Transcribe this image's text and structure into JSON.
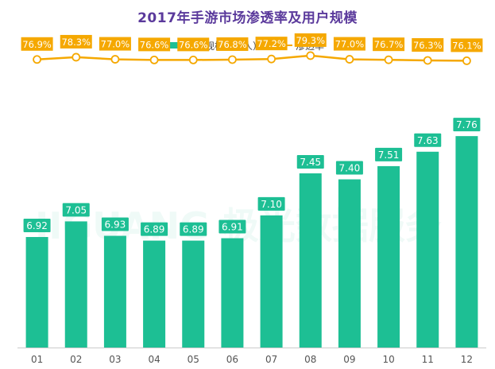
{
  "title": "2017年手游市场渗透率及用户规模",
  "legend": {
    "bar_label": "用户规模（亿人）",
    "line_label": "渗透率"
  },
  "watermark": "JIGUANG 极光数据服务",
  "colors": {
    "bar": "#1dbf94",
    "line": "#f5a800",
    "title": "#5b3a9c",
    "axis_text": "#555555"
  },
  "chart_data": {
    "type": "bar",
    "categories": [
      "01",
      "02",
      "03",
      "04",
      "05",
      "06",
      "07",
      "08",
      "09",
      "10",
      "11",
      "12"
    ],
    "series": [
      {
        "name": "用户规模（亿人）",
        "type": "bar",
        "values": [
          6.92,
          7.05,
          6.93,
          6.89,
          6.89,
          6.91,
          7.1,
          7.45,
          7.4,
          7.51,
          7.63,
          7.76
        ],
        "labels": [
          "6.92",
          "7.05",
          "6.93",
          "6.89",
          "6.89",
          "6.91",
          "7.10",
          "7.45",
          "7.40",
          "7.51",
          "7.63",
          "7.76"
        ]
      },
      {
        "name": "渗透率",
        "type": "line",
        "values": [
          76.9,
          78.3,
          77.0,
          76.6,
          76.6,
          76.8,
          77.2,
          79.3,
          77.0,
          76.7,
          76.3,
          76.1
        ],
        "labels": [
          "76.9%",
          "78.3%",
          "77.0%",
          "76.6%",
          "76.6%",
          "76.8%",
          "77.2%",
          "79.3%",
          "77.0%",
          "76.7%",
          "76.3%",
          "76.1%"
        ]
      }
    ],
    "bar_axis_range": [
      6.0,
      7.9
    ],
    "line_axis_range": [
      60,
      100
    ],
    "legend_position": "top-center",
    "grid": false
  }
}
